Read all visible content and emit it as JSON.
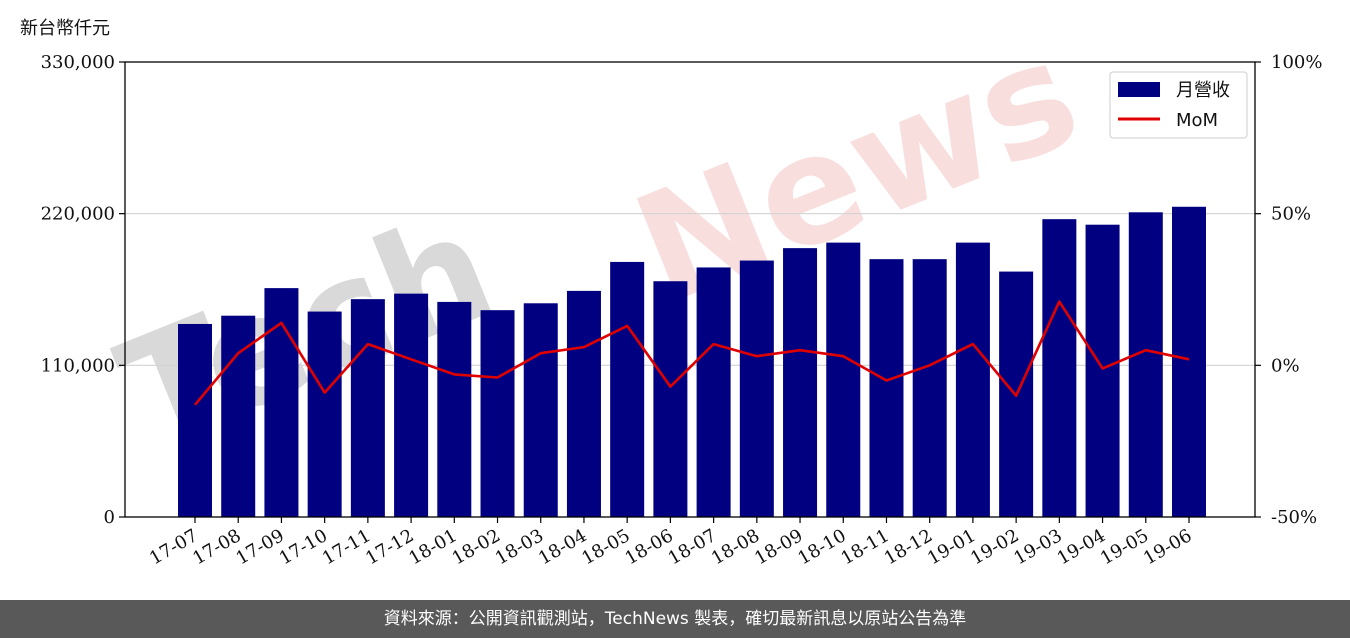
{
  "header": {
    "unit_label": "新台幣仟元"
  },
  "footer": {
    "source_text": "資料來源：公開資訊觀測站，TechNews 製表，確切最新訊息以原站公告為準"
  },
  "watermark": {
    "text": "TechNews"
  },
  "colors": {
    "bar": "#000080",
    "line": "#e00000",
    "grid": "#d3d3d3",
    "footer_bg": "#595959",
    "watermark_dark": "#d9d9d9",
    "watermark_red": "#f9dede"
  },
  "chart_data": {
    "type": "bar",
    "categories": [
      "17-07",
      "17-08",
      "17-09",
      "17-10",
      "17-11",
      "17-12",
      "18-01",
      "18-02",
      "18-03",
      "18-04",
      "18-05",
      "18-06",
      "18-07",
      "18-08",
      "18-09",
      "18-10",
      "18-11",
      "18-12",
      "19-01",
      "19-02",
      "19-03",
      "19-04",
      "19-05",
      "19-06"
    ],
    "series": [
      {
        "name": "月營收",
        "type": "bar",
        "axis": "left",
        "values": [
          140000,
          146000,
          166000,
          149000,
          158000,
          162000,
          156000,
          150000,
          155000,
          164000,
          185000,
          171000,
          181000,
          186000,
          195000,
          199000,
          187000,
          187000,
          199000,
          178000,
          216000,
          212000,
          221000,
          225000
        ]
      },
      {
        "name": "MoM",
        "type": "line",
        "axis": "right",
        "values": [
          -13,
          4,
          14,
          -9,
          7,
          2,
          -3,
          -4,
          4,
          6,
          13,
          -7,
          7,
          3,
          5,
          3,
          -5,
          0,
          7,
          -10,
          21,
          -1,
          5,
          2
        ]
      }
    ],
    "y_left": {
      "ticks": [
        0,
        110000,
        220000,
        330000
      ],
      "tick_labels": [
        "0",
        "110,000",
        "220,000",
        "330,000"
      ],
      "ylim": [
        0,
        330000
      ]
    },
    "y_right": {
      "ticks": [
        -50,
        0,
        50,
        100
      ],
      "tick_labels": [
        "-50%",
        "0%",
        "50%",
        "100%"
      ],
      "ylim": [
        -50,
        100
      ]
    },
    "grid": "horizontal",
    "legend_position": "top-right"
  }
}
